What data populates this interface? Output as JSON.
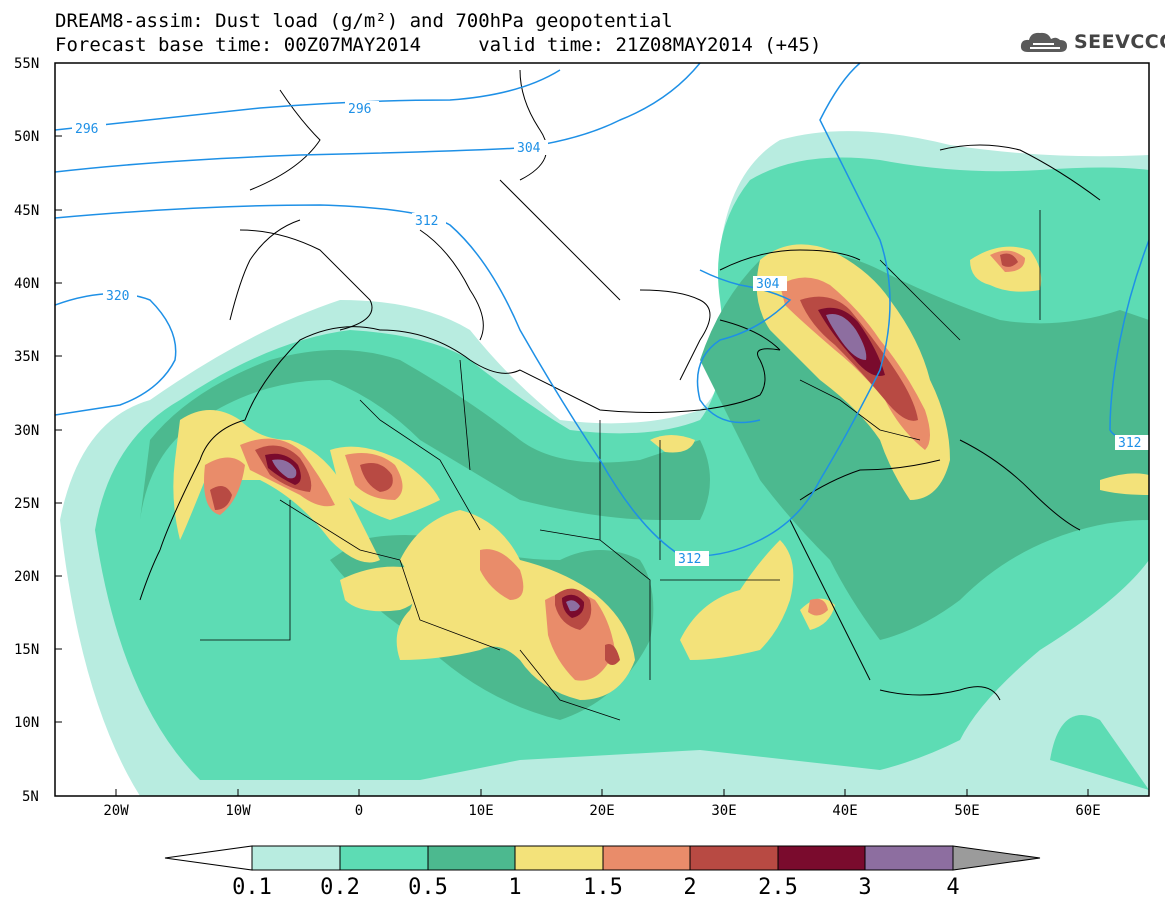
{
  "title": {
    "line1": "DREAM8-assim: Dust load (g/m²) and 700hPa geopotential",
    "line2": "Forecast base time: 00Z07MAY2014     valid time: 21Z08MAY2014 (+45)"
  },
  "logo": {
    "text": "SEEVCCC",
    "icon": "cloud-icon"
  },
  "map": {
    "lat_labels": [
      "55N",
      "50N",
      "45N",
      "40N",
      "35N",
      "30N",
      "25N",
      "20N",
      "15N",
      "10N",
      "5N"
    ],
    "lon_labels": [
      "20W",
      "10W",
      "0",
      "10E",
      "20E",
      "30E",
      "40E",
      "50E",
      "60E"
    ],
    "contour_labels": [
      "296",
      "296",
      "304",
      "312",
      "320",
      "304",
      "312",
      "312"
    ],
    "colors": {
      "ocean": "#ffffff",
      "coast": "#000000",
      "contour": "#1e90e6"
    }
  },
  "colorbar": {
    "labels": [
      "0.1",
      "0.2",
      "0.5",
      "1",
      "1.5",
      "2",
      "2.5",
      "3",
      "4"
    ],
    "colors": [
      "#b8ece0",
      "#5ddcb4",
      "#4cb98f",
      "#f3e27a",
      "#e98c6a",
      "#b84a43",
      "#7a0b2d",
      "#8d6ea0",
      "#9b9b9b"
    ]
  }
}
